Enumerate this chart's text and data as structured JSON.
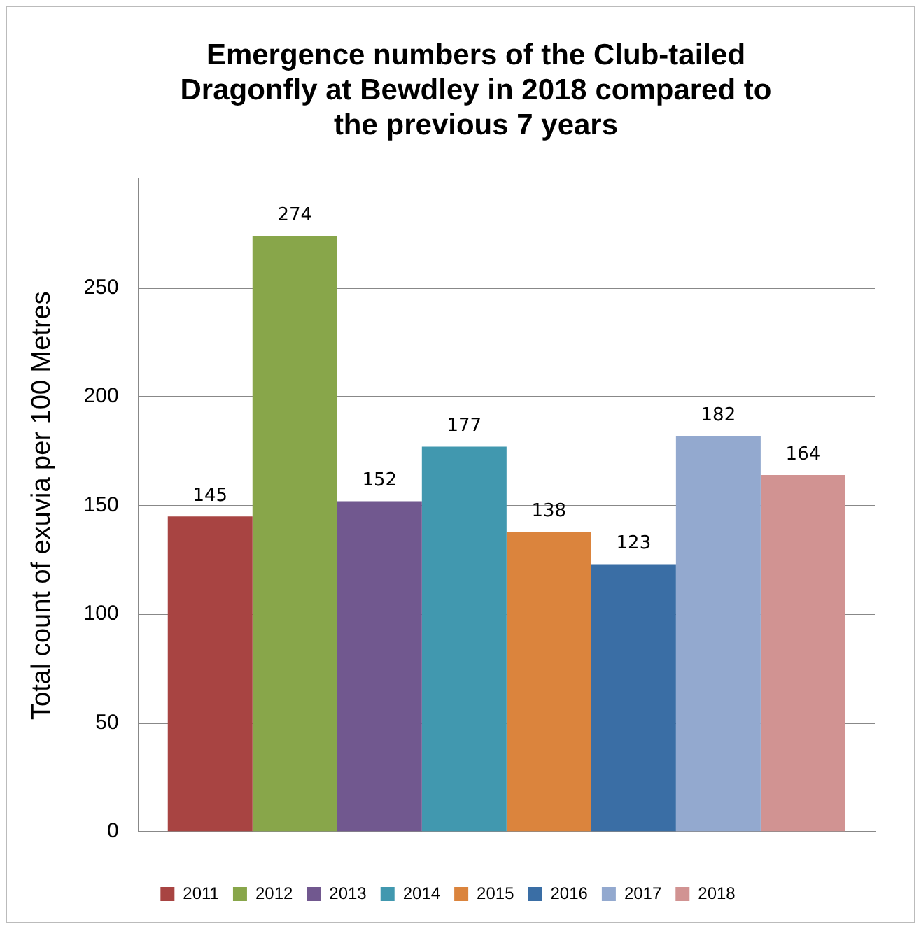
{
  "chart_data": {
    "type": "bar",
    "title": "Emergence numbers of the Club-tailed Dragonfly at Bewdley in 2018 compared to the previous 7 years",
    "ylabel": "Total count of exuvia per 100 Metres",
    "categories": [
      null
    ],
    "series": [
      {
        "name": "2011",
        "color": "#a84442",
        "values": [
          145
        ]
      },
      {
        "name": "2012",
        "color": "#88a64a",
        "values": [
          274
        ]
      },
      {
        "name": "2013",
        "color": "#71588f",
        "values": [
          152
        ]
      },
      {
        "name": "2014",
        "color": "#4198af",
        "values": [
          177
        ]
      },
      {
        "name": "2015",
        "color": "#db843d",
        "values": [
          138
        ]
      },
      {
        "name": "2016",
        "color": "#3a6ea5",
        "values": [
          123
        ]
      },
      {
        "name": "2017",
        "color": "#93a9cf",
        "values": [
          182
        ]
      },
      {
        "name": "2018",
        "color": "#d19392",
        "values": [
          164
        ]
      }
    ],
    "ylim": [
      0,
      300
    ],
    "yticks": [
      0,
      50,
      100,
      150,
      200,
      250
    ],
    "grid": "y",
    "legend": "bottom",
    "data_labels": true
  }
}
